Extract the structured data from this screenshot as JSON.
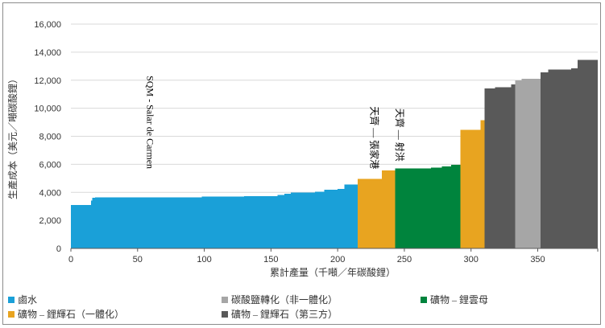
{
  "chart_data": {
    "type": "bar",
    "title": "",
    "xlabel": "累計產量（千噸／年碳酸鋰）",
    "ylabel": "生產成本（美元／噸碳酸鋰）",
    "xlim": [
      0,
      395
    ],
    "ylim": [
      0,
      16000
    ],
    "y_ticks": [
      "0",
      "2,000",
      "4,000",
      "6,000",
      "8,000",
      "10,000",
      "12,000",
      "14,000",
      "16,000"
    ],
    "x_ticks": [
      "0",
      "50",
      "100",
      "150",
      "200",
      "250",
      "300",
      "350"
    ],
    "grid": "horizontal",
    "legend_position": "bottom",
    "categories": [
      {
        "name": "鹵水",
        "color": "#1aa0d8"
      },
      {
        "name": "碳酸鹽轉化（非一體化）",
        "color": "#a6a6a6"
      },
      {
        "name": "礦物 – 鋰雲母",
        "color": "#00843d"
      },
      {
        "name": "礦物 – 鋰輝石（一體化）",
        "color": "#e8a420"
      },
      {
        "name": "礦物 – 鋰輝石（第三方）",
        "color": "#595959"
      }
    ],
    "steps": [
      {
        "cat": 0,
        "x0": 0,
        "x1": 15,
        "y": 3100
      },
      {
        "cat": 0,
        "x0": 15,
        "x1": 16,
        "y": 3400
      },
      {
        "cat": 0,
        "x0": 16,
        "x1": 18,
        "y": 3600
      },
      {
        "cat": 0,
        "x0": 18,
        "x1": 50,
        "y": 3650
      },
      {
        "cat": 0,
        "x0": 50,
        "x1": 98,
        "y": 3650
      },
      {
        "cat": 0,
        "x0": 98,
        "x1": 130,
        "y": 3700
      },
      {
        "cat": 0,
        "x0": 130,
        "x1": 155,
        "y": 3720
      },
      {
        "cat": 0,
        "x0": 155,
        "x1": 160,
        "y": 3800
      },
      {
        "cat": 0,
        "x0": 160,
        "x1": 165,
        "y": 3900
      },
      {
        "cat": 0,
        "x0": 165,
        "x1": 183,
        "y": 4000
      },
      {
        "cat": 0,
        "x0": 183,
        "x1": 190,
        "y": 4050
      },
      {
        "cat": 0,
        "x0": 190,
        "x1": 200,
        "y": 4200
      },
      {
        "cat": 0,
        "x0": 200,
        "x1": 205,
        "y": 4250
      },
      {
        "cat": 0,
        "x0": 205,
        "x1": 215,
        "y": 4550
      },
      {
        "cat": 3,
        "x0": 215,
        "x1": 233,
        "y": 4950
      },
      {
        "cat": 3,
        "x0": 233,
        "x1": 243,
        "y": 5550
      },
      {
        "cat": 2,
        "x0": 243,
        "x1": 270,
        "y": 5700
      },
      {
        "cat": 2,
        "x0": 270,
        "x1": 278,
        "y": 5750
      },
      {
        "cat": 2,
        "x0": 278,
        "x1": 285,
        "y": 5850
      },
      {
        "cat": 2,
        "x0": 285,
        "x1": 292,
        "y": 5950
      },
      {
        "cat": 3,
        "x0": 292,
        "x1": 307,
        "y": 8450
      },
      {
        "cat": 3,
        "x0": 307,
        "x1": 310,
        "y": 9150
      },
      {
        "cat": 4,
        "x0": 310,
        "x1": 318,
        "y": 11400
      },
      {
        "cat": 4,
        "x0": 318,
        "x1": 330,
        "y": 11500
      },
      {
        "cat": 4,
        "x0": 330,
        "x1": 333,
        "y": 11700
      },
      {
        "cat": 1,
        "x0": 333,
        "x1": 338,
        "y": 12000
      },
      {
        "cat": 1,
        "x0": 338,
        "x1": 352,
        "y": 12100
      },
      {
        "cat": 4,
        "x0": 352,
        "x1": 358,
        "y": 12550
      },
      {
        "cat": 4,
        "x0": 358,
        "x1": 375,
        "y": 12750
      },
      {
        "cat": 4,
        "x0": 375,
        "x1": 380,
        "y": 12850
      },
      {
        "cat": 4,
        "x0": 380,
        "x1": 395,
        "y": 13450
      }
    ],
    "annotations": [
      {
        "text": "SQM - Salar de Carmen",
        "x": 57,
        "y": 9000
      },
      {
        "text": "天齊 — 張家港",
        "x": 225,
        "y": 7900
      },
      {
        "text": "天齊 — 射洪",
        "x": 244,
        "y": 8100
      }
    ]
  }
}
